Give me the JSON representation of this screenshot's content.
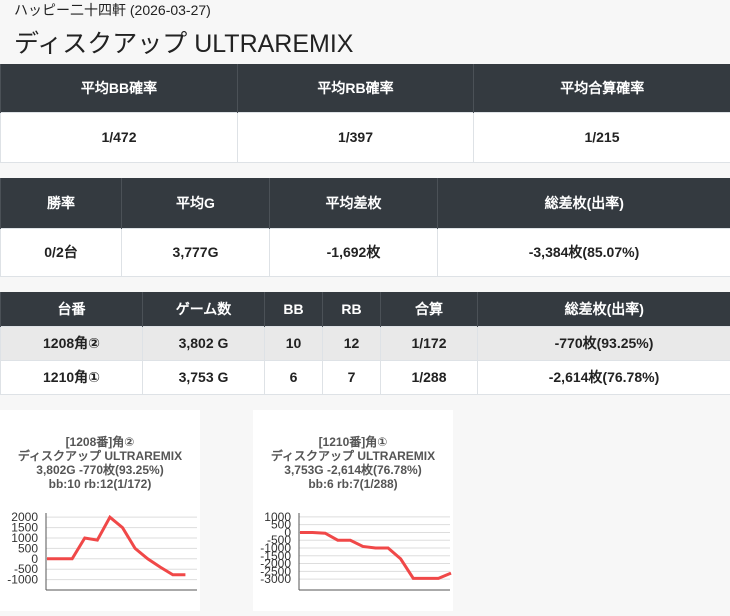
{
  "header": {
    "store": "ハッピー二十四軒 (2026-03-27)",
    "title": "ディスクアップ ULTRAREMIX"
  },
  "tables": [
    {
      "columns": [
        "平均BB確率",
        "平均RB確率",
        "平均合算確率"
      ],
      "rows": [
        [
          "1/472",
          "1/397",
          "1/215"
        ]
      ]
    },
    {
      "columns": [
        "勝率",
        "平均G",
        "平均差枚",
        "総差枚(出率)"
      ],
      "rows": [
        [
          "0/2台",
          "3,777G",
          "-1,692枚",
          "-3,384枚(85.07%)"
        ]
      ]
    },
    {
      "columns": [
        "台番",
        "ゲーム数",
        "BB",
        "RB",
        "合算",
        "総差枚(出率)"
      ],
      "rows": [
        [
          "1208角②",
          "3,802 G",
          "10",
          "12",
          "1/172",
          "-770枚(93.25%)"
        ],
        [
          "1210角①",
          "3,753 G",
          "6",
          "7",
          "1/288",
          "-2,614枚(76.78%)"
        ]
      ]
    }
  ],
  "chart_data": [
    {
      "type": "line",
      "title_lines": [
        "[1208番]角②",
        "ディスクアップ ULTRAREMIX",
        "3,802G -770枚(93.25%)",
        "bb:10 rb:12(1/172)"
      ],
      "values": [
        0,
        0,
        0,
        1000,
        900,
        2000,
        1500,
        500,
        0,
        -400,
        -770,
        -770
      ],
      "color": "#f04848",
      "ylim": [
        -1500,
        2200
      ],
      "yticks": [
        2000,
        1500,
        1000,
        500,
        0,
        -500,
        -1000
      ],
      "grid": true
    },
    {
      "type": "line",
      "title_lines": [
        "[1210番]角①",
        "ディスクアップ ULTRAREMIX",
        "3,753G -2,614枚(76.78%)",
        "bb:6 rb:7(1/288)"
      ],
      "values": [
        0,
        0,
        -50,
        -500,
        -500,
        -900,
        -1000,
        -1000,
        -1700,
        -2950,
        -2950,
        -2950,
        -2614
      ],
      "color": "#f04848",
      "ylim": [
        -3700,
        1250
      ],
      "yticks": [
        1000,
        500,
        0,
        -500,
        -1000,
        -1500,
        -2000,
        -2500,
        -3000
      ],
      "grid": true
    }
  ]
}
